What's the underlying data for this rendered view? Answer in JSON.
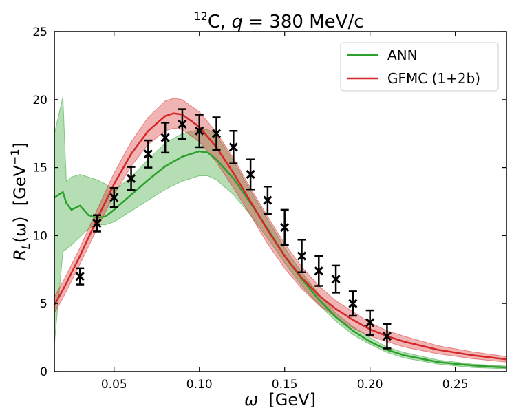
{
  "chart_data": {
    "type": "line",
    "title": {
      "nucleus_mass": "12",
      "nucleus": "C, ",
      "q_symbol": "q",
      "q_value": " = 380 MeV/c"
    },
    "xlabel": {
      "symbol": "ω",
      "unit": "  [GeV]"
    },
    "ylabel": {
      "symbol": "R",
      "subscript": "L",
      "arg": "(ω)  [GeV",
      "exp": "−1",
      "close": "]"
    },
    "xlim": [
      0.015,
      0.28
    ],
    "ylim": [
      0,
      25
    ],
    "xticks": [
      0.05,
      0.1,
      0.15,
      0.2,
      0.25
    ],
    "xtick_labels": [
      "0.05",
      "0.10",
      "0.15",
      "0.20",
      "0.25"
    ],
    "yticks": [
      0,
      5,
      10,
      15,
      20,
      25
    ],
    "ytick_labels": [
      "0",
      "5",
      "10",
      "15",
      "20",
      "25"
    ],
    "grid": false,
    "legend_position": "top-right",
    "series": [
      {
        "name": "ANN",
        "color": "#2ca02c",
        "band_color": "#2ca02c",
        "x": [
          0.015,
          0.02,
          0.022,
          0.025,
          0.03,
          0.035,
          0.04,
          0.045,
          0.05,
          0.06,
          0.07,
          0.08,
          0.09,
          0.1,
          0.105,
          0.11,
          0.12,
          0.13,
          0.14,
          0.15,
          0.16,
          0.17,
          0.18,
          0.19,
          0.2,
          0.21,
          0.22,
          0.24,
          0.26,
          0.28
        ],
        "y": [
          12.8,
          13.2,
          12.4,
          11.9,
          12.2,
          11.5,
          11.3,
          11.4,
          11.9,
          13.0,
          14.1,
          15.1,
          15.8,
          16.2,
          16.1,
          15.6,
          14.2,
          12.4,
          10.5,
          8.5,
          6.8,
          5.3,
          4.0,
          3.0,
          2.2,
          1.6,
          1.2,
          0.7,
          0.45,
          0.3
        ],
        "lower": [
          2.0,
          8.8,
          9.0,
          9.3,
          9.9,
          10.5,
          10.8,
          10.8,
          11.0,
          11.8,
          12.6,
          13.4,
          14.0,
          14.4,
          14.4,
          14.1,
          13.0,
          11.5,
          9.8,
          8.0,
          6.3,
          4.9,
          3.7,
          2.7,
          2.0,
          1.4,
          1.0,
          0.55,
          0.3,
          0.2
        ],
        "upper": [
          17.5,
          20.2,
          14.0,
          14.3,
          14.5,
          14.3,
          14.1,
          13.8,
          13.3,
          14.3,
          15.6,
          16.8,
          17.5,
          17.8,
          17.8,
          17.4,
          15.5,
          13.3,
          11.2,
          9.1,
          7.3,
          5.7,
          4.3,
          3.3,
          2.5,
          1.8,
          1.4,
          0.85,
          0.55,
          0.4
        ]
      },
      {
        "name": "GFMC (1+2b)",
        "color": "#d62728",
        "band_color": "#d62728",
        "x": [
          0.015,
          0.02,
          0.03,
          0.04,
          0.05,
          0.06,
          0.07,
          0.08,
          0.085,
          0.09,
          0.1,
          0.11,
          0.12,
          0.13,
          0.14,
          0.15,
          0.16,
          0.17,
          0.18,
          0.19,
          0.2,
          0.21,
          0.22,
          0.24,
          0.26,
          0.28
        ],
        "y": [
          4.9,
          6.0,
          8.5,
          11.2,
          13.8,
          16.0,
          17.7,
          18.8,
          19.0,
          18.9,
          18.0,
          16.5,
          14.6,
          12.5,
          10.4,
          8.5,
          6.9,
          5.6,
          4.6,
          3.8,
          3.1,
          2.6,
          2.2,
          1.6,
          1.2,
          0.9
        ],
        "lower": [
          4.3,
          5.4,
          7.9,
          10.5,
          13.0,
          15.1,
          16.7,
          17.7,
          17.9,
          17.8,
          16.9,
          15.4,
          13.5,
          11.5,
          9.4,
          7.6,
          6.1,
          4.9,
          4.0,
          3.2,
          2.6,
          2.2,
          1.8,
          1.3,
          0.95,
          0.7
        ],
        "upper": [
          5.5,
          6.6,
          9.1,
          11.9,
          14.6,
          16.9,
          18.7,
          19.9,
          20.1,
          20.0,
          19.1,
          17.6,
          15.7,
          13.5,
          11.4,
          9.4,
          7.7,
          6.3,
          5.2,
          4.4,
          3.6,
          3.0,
          2.6,
          1.9,
          1.45,
          1.1
        ]
      }
    ],
    "points": {
      "marker": "x",
      "color": "#000000",
      "x": [
        0.03,
        0.04,
        0.05,
        0.06,
        0.07,
        0.08,
        0.09,
        0.1,
        0.11,
        0.12,
        0.13,
        0.14,
        0.15,
        0.16,
        0.17,
        0.18,
        0.19,
        0.2,
        0.21
      ],
      "y": [
        7.0,
        10.9,
        12.8,
        14.2,
        16.0,
        17.2,
        18.2,
        17.7,
        17.5,
        16.5,
        14.5,
        12.6,
        10.6,
        8.5,
        7.4,
        6.8,
        5.0,
        3.6,
        2.6
      ],
      "err": [
        0.6,
        0.6,
        0.7,
        0.85,
        1.0,
        1.1,
        1.1,
        1.2,
        1.2,
        1.2,
        1.1,
        1.0,
        1.3,
        1.2,
        1.1,
        1.0,
        0.9,
        0.9,
        0.9
      ]
    }
  }
}
